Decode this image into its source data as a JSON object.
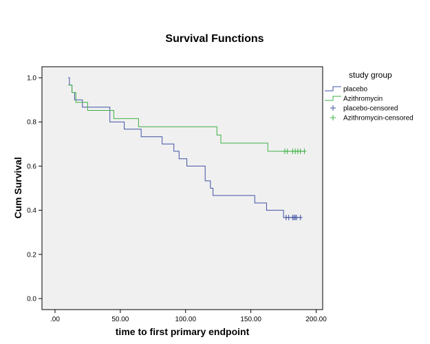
{
  "chart_data": {
    "type": "line",
    "subtype": "kaplan-meier-step",
    "title": "Survival Functions",
    "xlabel": "time to first primary endpoint",
    "ylabel": "Cum Survival",
    "xlim": [
      -10,
      205
    ],
    "ylim": [
      -0.05,
      1.05
    ],
    "x_ticks": [
      0,
      50,
      100,
      150,
      200
    ],
    "x_tick_labels": [
      ".00",
      "50.00",
      "100.00",
      "150.00",
      "200.00"
    ],
    "y_ticks": [
      0,
      0.2,
      0.4,
      0.6,
      0.8,
      1.0
    ],
    "y_tick_labels": [
      "0.0",
      "0.2",
      "0.4",
      "0.6",
      "0.8",
      "1.0"
    ],
    "grid": false,
    "plot_background": "#f0f0f0",
    "legend": {
      "title": "study group",
      "placement": "right",
      "entries": [
        {
          "label": "placebo",
          "marker": "step",
          "color": "#3f51a5"
        },
        {
          "label": "Azithromycin",
          "marker": "step",
          "color": "#3cb043"
        },
        {
          "label": "placebo-censored",
          "marker": "plus",
          "color": "#3f51a5"
        },
        {
          "label": "Azithromycin-censored",
          "marker": "plus",
          "color": "#3cb043"
        }
      ]
    },
    "series": [
      {
        "name": "placebo",
        "color": "#3f51a5",
        "steps": [
          [
            10,
            1.0
          ],
          [
            11,
            0.967
          ],
          [
            13,
            0.933
          ],
          [
            15,
            0.9
          ],
          [
            21,
            0.867
          ],
          [
            42,
            0.8
          ],
          [
            53,
            0.767
          ],
          [
            66,
            0.733
          ],
          [
            82,
            0.7
          ],
          [
            91,
            0.667
          ],
          [
            95,
            0.633
          ],
          [
            101,
            0.6
          ],
          [
            115,
            0.533
          ],
          [
            119,
            0.5
          ],
          [
            121,
            0.467
          ],
          [
            153,
            0.433
          ],
          [
            162,
            0.4
          ],
          [
            175,
            0.367
          ],
          [
            188,
            0.367
          ]
        ],
        "censored": [
          [
            177,
            0.367
          ],
          [
            179,
            0.367
          ],
          [
            182,
            0.367
          ],
          [
            183,
            0.367
          ],
          [
            184,
            0.367
          ],
          [
            185,
            0.367
          ],
          [
            188,
            0.367
          ]
        ]
      },
      {
        "name": "Azithromycin",
        "color": "#3cb043",
        "steps": [
          [
            10,
            0.967
          ],
          [
            13,
            0.933
          ],
          [
            16,
            0.889
          ],
          [
            25,
            0.852
          ],
          [
            45,
            0.815
          ],
          [
            64,
            0.778
          ],
          [
            124,
            0.741
          ],
          [
            127,
            0.704
          ],
          [
            163,
            0.667
          ],
          [
            191,
            0.667
          ]
        ],
        "censored": [
          [
            176,
            0.667
          ],
          [
            178,
            0.667
          ],
          [
            182,
            0.667
          ],
          [
            184,
            0.667
          ],
          [
            186,
            0.667
          ],
          [
            188,
            0.667
          ],
          [
            191,
            0.667
          ]
        ]
      }
    ]
  }
}
